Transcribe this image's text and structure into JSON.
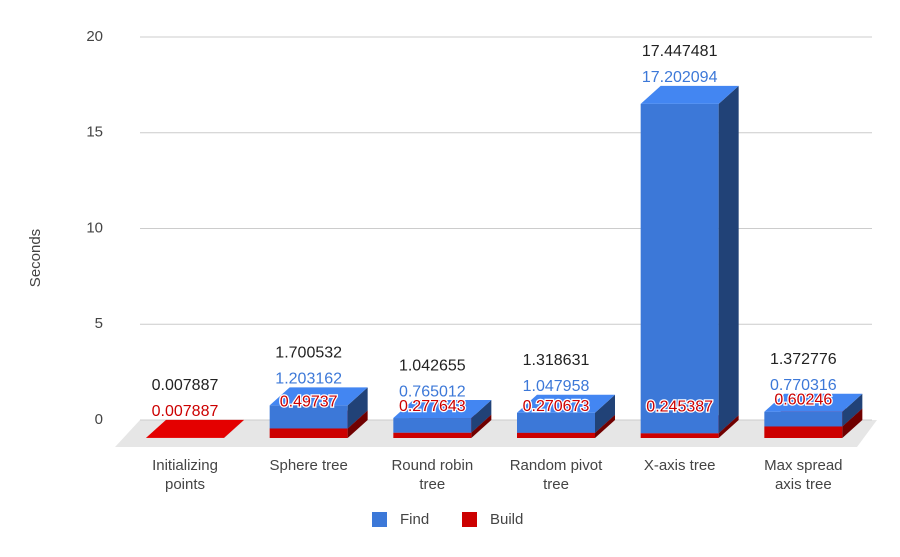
{
  "chart_data": {
    "type": "bar3d_stacked",
    "y_label": "Seconds",
    "categories": [
      "Initializing points",
      "Sphere tree",
      "Round robin tree",
      "Random pivot tree",
      "X-axis tree",
      "Max spread axis tree"
    ],
    "series": [
      {
        "name": "Build",
        "color": "#cc0000",
        "values": [
          0.007887,
          0.49737,
          0.277643,
          0.270673,
          0.245387,
          0.60246
        ]
      },
      {
        "name": "Find",
        "color": "#3c78d8",
        "values": [
          null,
          1.203162,
          0.765012,
          1.047958,
          17.202094,
          0.770316
        ]
      }
    ],
    "totals": [
      0.007887,
      1.700532,
      1.042655,
      1.318631,
      17.447481,
      1.372776
    ],
    "legend_order": [
      "Find",
      "Build"
    ],
    "ylim": [
      0,
      20
    ],
    "yticks": [
      0,
      5,
      10,
      15,
      20
    ],
    "grid": true,
    "legend": "bottom"
  }
}
